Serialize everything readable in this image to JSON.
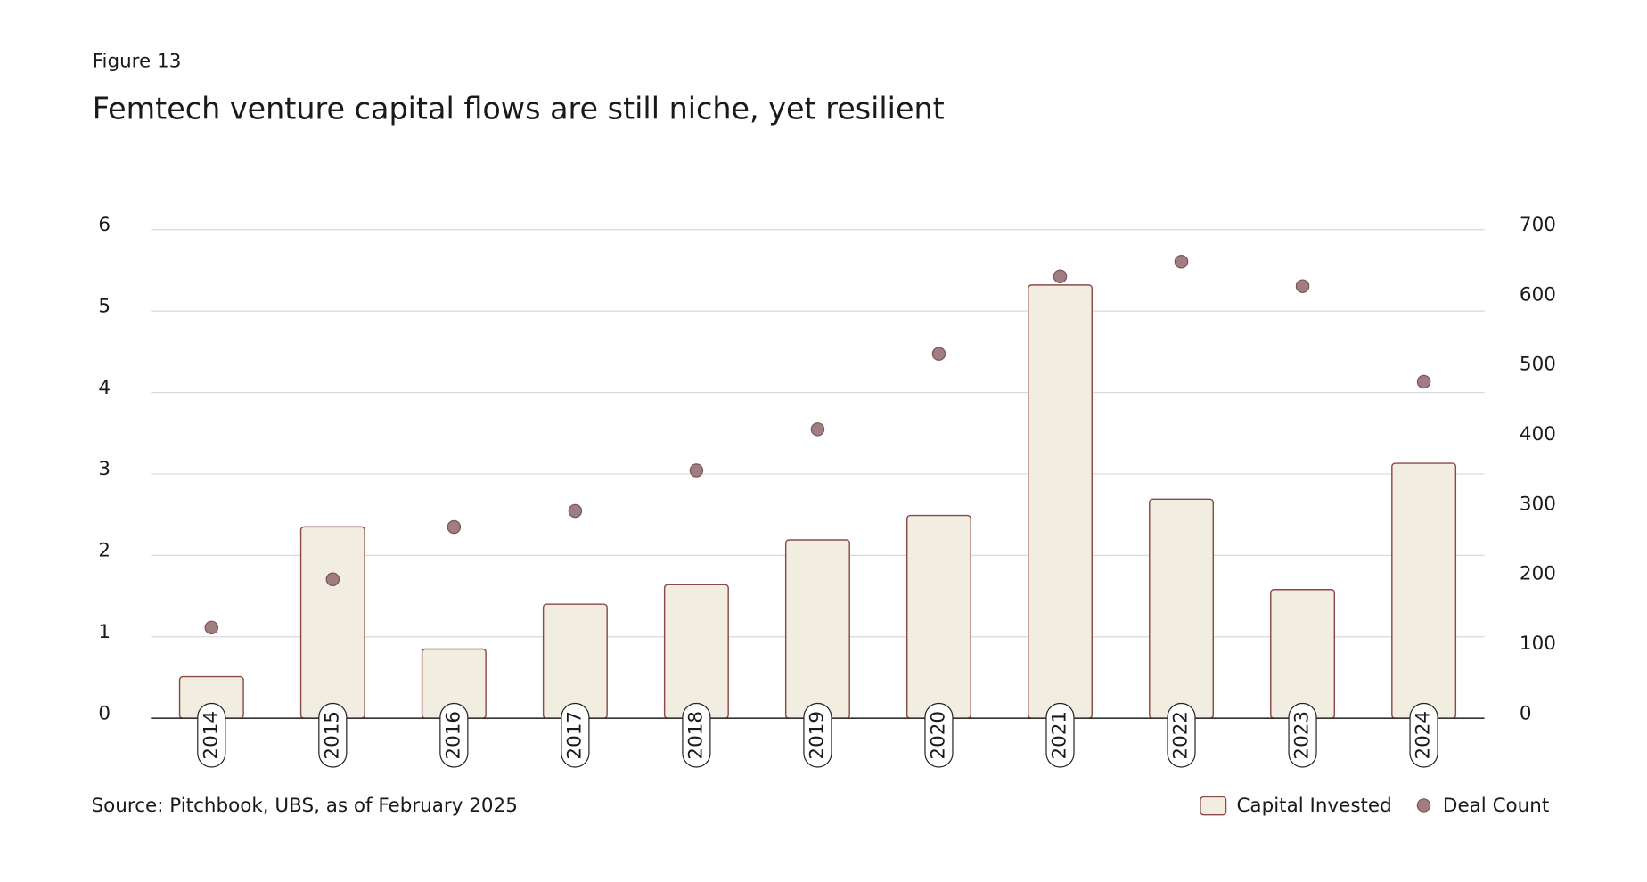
{
  "chart_data": {
    "type": "bar",
    "figure_label": "Figure 13",
    "title": "Femtech venture capital flows are still niche, yet resilient",
    "source": "Source: Pitchbook, UBS, as of February 2025",
    "categories": [
      "2014",
      "2015",
      "2016",
      "2017",
      "2018",
      "2019",
      "2020",
      "2021",
      "2022",
      "2023",
      "2024"
    ],
    "series": [
      {
        "name": "Capital Invested",
        "type": "bar",
        "color": "#f2ede1",
        "edge_color": "#8b4a4a",
        "values": [
          0.51,
          2.35,
          0.85,
          1.4,
          1.64,
          2.19,
          2.49,
          5.32,
          2.69,
          1.58,
          3.13
        ]
      },
      {
        "name": "Deal Count",
        "type": "scatter",
        "axis": "y2",
        "color": "#a07d80",
        "edge_color": "#7a5558",
        "values": [
          130,
          199,
          274,
          297,
          355,
          414,
          522,
          633,
          654,
          619,
          482
        ]
      }
    ],
    "ylim": [
      0,
      6
    ],
    "yticks": [
      0,
      1,
      2,
      3,
      4,
      5,
      6
    ],
    "y2lim": [
      0,
      700
    ],
    "y2ticks": [
      0,
      100,
      200,
      300,
      400,
      500,
      600,
      700
    ],
    "grid": true,
    "legend": "bottom-right"
  }
}
